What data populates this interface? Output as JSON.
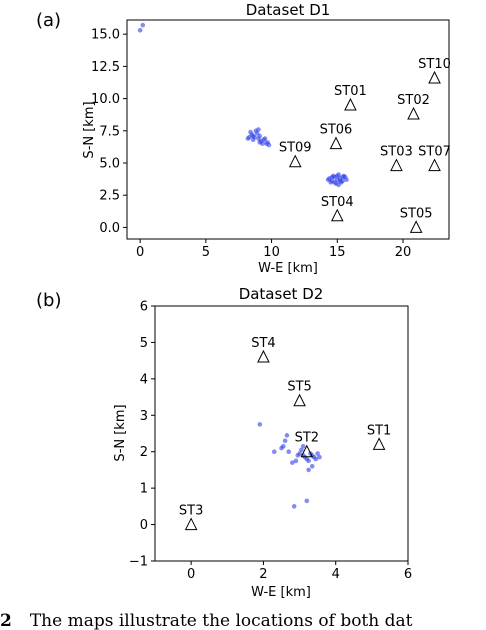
{
  "chart_data": [
    {
      "type": "scatter",
      "panel_label": "(a)",
      "title": "Dataset D1",
      "xlabel": "W-E [km]",
      "ylabel": "S-N [km]",
      "xlim": [
        -1,
        23.5
      ],
      "ylim": [
        -0.9,
        16.1
      ],
      "xticks": [
        "0",
        "5",
        "10",
        "15",
        "20"
      ],
      "xtick_values": [
        0,
        5,
        10,
        15,
        20
      ],
      "yticks": [
        "0.0",
        "2.5",
        "5.0",
        "7.5",
        "10.0",
        "12.5",
        "15.0"
      ],
      "ytick_values": [
        0,
        2.5,
        5,
        7.5,
        10,
        12.5,
        15
      ],
      "grid": false,
      "point_color": "#2f3fe8",
      "stations": [
        {
          "name": "ST01",
          "x": 16.0,
          "y": 9.5
        },
        {
          "name": "ST02",
          "x": 20.8,
          "y": 8.8
        },
        {
          "name": "ST03",
          "x": 19.5,
          "y": 4.8
        },
        {
          "name": "ST04",
          "x": 15.0,
          "y": 0.9
        },
        {
          "name": "ST05",
          "x": 21.0,
          "y": 0.0
        },
        {
          "name": "ST06",
          "x": 14.9,
          "y": 6.5
        },
        {
          "name": "ST07",
          "x": 22.4,
          "y": 4.8
        },
        {
          "name": "ST09",
          "x": 11.8,
          "y": 5.1
        },
        {
          "name": "ST10",
          "x": 22.4,
          "y": 11.6
        }
      ],
      "events": [
        [
          0.0,
          15.3
        ],
        [
          0.2,
          15.7
        ],
        [
          8.3,
          7.0
        ],
        [
          8.5,
          7.2
        ],
        [
          8.7,
          7.0
        ],
        [
          8.9,
          7.3
        ],
        [
          9.1,
          7.1
        ],
        [
          8.6,
          6.8
        ],
        [
          8.8,
          7.5
        ],
        [
          9.0,
          6.9
        ],
        [
          9.2,
          6.7
        ],
        [
          9.4,
          6.8
        ],
        [
          9.6,
          6.5
        ],
        [
          9.8,
          6.4
        ],
        [
          9.3,
          6.5
        ],
        [
          8.4,
          7.4
        ],
        [
          9.0,
          7.6
        ],
        [
          8.2,
          6.9
        ],
        [
          9.5,
          6.9
        ],
        [
          9.7,
          6.6
        ],
        [
          8.6,
          7.1
        ],
        [
          9.1,
          6.6
        ],
        [
          14.4,
          3.8
        ],
        [
          14.6,
          3.6
        ],
        [
          14.8,
          3.9
        ],
        [
          15.0,
          3.7
        ],
        [
          15.2,
          3.8
        ],
        [
          15.4,
          3.6
        ],
        [
          15.6,
          3.9
        ],
        [
          14.7,
          4.0
        ],
        [
          15.1,
          4.1
        ],
        [
          15.3,
          3.5
        ],
        [
          14.5,
          3.5
        ],
        [
          15.5,
          4.0
        ],
        [
          14.9,
          3.4
        ],
        [
          15.7,
          3.7
        ],
        [
          14.3,
          3.7
        ],
        [
          15.0,
          4.0
        ],
        [
          14.8,
          3.5
        ],
        [
          15.2,
          3.6
        ],
        [
          15.4,
          3.9
        ],
        [
          14.6,
          3.9
        ],
        [
          15.1,
          3.3
        ]
      ]
    },
    {
      "type": "scatter",
      "panel_label": "(b)",
      "title": "Dataset D2",
      "xlabel": "W-E [km]",
      "ylabel": "S-N [km]",
      "xlim": [
        -1,
        6
      ],
      "ylim": [
        -1,
        6
      ],
      "xticks": [
        "0",
        "2",
        "4",
        "6"
      ],
      "xtick_values": [
        0,
        2,
        4,
        6
      ],
      "yticks": [
        "−1",
        "0",
        "1",
        "2",
        "3",
        "4",
        "5",
        "6"
      ],
      "ytick_values": [
        -1,
        0,
        1,
        2,
        3,
        4,
        5,
        6
      ],
      "grid": false,
      "point_color": "#2f3fe8",
      "stations": [
        {
          "name": "ST1",
          "x": 5.2,
          "y": 2.2
        },
        {
          "name": "ST2",
          "x": 3.2,
          "y": 2.0
        },
        {
          "name": "ST3",
          "x": 0.0,
          "y": 0.0
        },
        {
          "name": "ST4",
          "x": 2.0,
          "y": 4.6
        },
        {
          "name": "ST5",
          "x": 3.0,
          "y": 3.4
        }
      ],
      "events": [
        [
          1.9,
          2.75
        ],
        [
          2.5,
          2.1
        ],
        [
          2.55,
          2.15
        ],
        [
          2.6,
          2.3
        ],
        [
          2.65,
          2.45
        ],
        [
          2.7,
          2.0
        ],
        [
          2.8,
          1.7
        ],
        [
          2.9,
          1.75
        ],
        [
          2.95,
          1.9
        ],
        [
          3.0,
          1.95
        ],
        [
          3.05,
          2.05
        ],
        [
          3.1,
          1.9
        ],
        [
          3.15,
          1.85
        ],
        [
          3.2,
          1.8
        ],
        [
          3.25,
          1.75
        ],
        [
          3.3,
          1.95
        ],
        [
          3.35,
          1.9
        ],
        [
          3.4,
          1.85
        ],
        [
          3.45,
          1.8
        ],
        [
          3.5,
          1.95
        ],
        [
          3.55,
          1.85
        ],
        [
          3.1,
          2.15
        ],
        [
          3.25,
          1.5
        ],
        [
          3.2,
          0.65
        ],
        [
          2.85,
          0.5
        ],
        [
          2.3,
          2.0
        ],
        [
          3.35,
          1.6
        ]
      ]
    }
  ]
}
